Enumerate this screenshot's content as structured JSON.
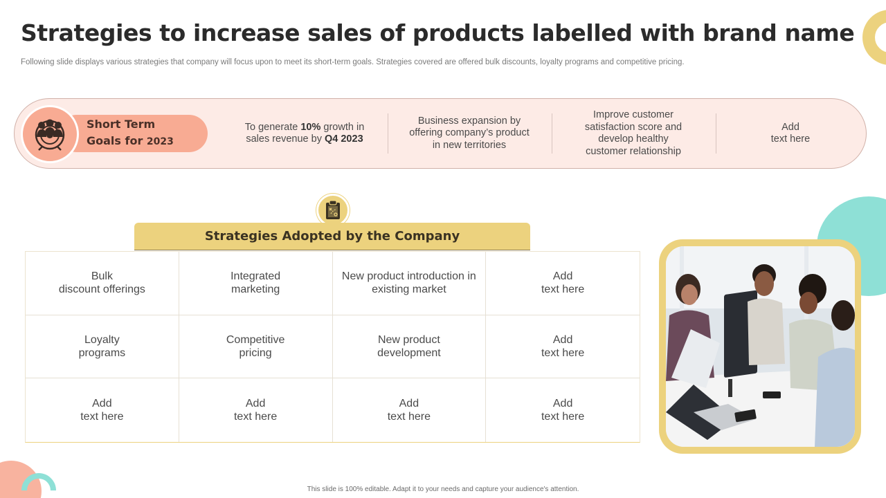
{
  "header": {
    "title": "Strategies to increase sales of products labelled with brand name",
    "subtitle": "Following slide displays various strategies that company will focus upon to meet its short-term goals. Strategies covered are offered bulk discounts, loyalty programs and competitive pricing."
  },
  "goals": {
    "label_line1": "Short Term",
    "label_line2": "Goals for",
    "label_year": "2023",
    "icon": "team-icon",
    "items": [
      {
        "pre": "To generate ",
        "bold": "10%",
        "mid": " growth in sales revenue by ",
        "bold2": "Q4 2023"
      },
      {
        "text": "Business expansion by offering company’s product in new territories"
      },
      {
        "text": "Improve customer satisfaction score and develop healthy customer relationship"
      },
      {
        "text": "Add\ntext here"
      }
    ]
  },
  "strategies": {
    "title": "Strategies Adopted by the Company",
    "icon": "clipboard-strategy-icon",
    "cells": [
      "Bulk\ndiscount offerings",
      "Integrated\nmarketing",
      "New product introduction in existing market",
      "Add\ntext here",
      "Loyalty\nprograms",
      "Competitive\npricing",
      "New product\ndevelopment",
      "Add\ntext here",
      "Add\ntext here",
      "Add\ntext here",
      "Add\ntext here",
      "Add\ntext here"
    ]
  },
  "footer": {
    "text": "This slide is 100% editable. Adapt it to your needs and capture your audience's attention."
  },
  "colors": {
    "accent_yellow": "#ecd27e",
    "accent_salmon": "#f8ab93",
    "accent_teal": "#8ee0d6",
    "band_bg": "#fdebe6"
  }
}
